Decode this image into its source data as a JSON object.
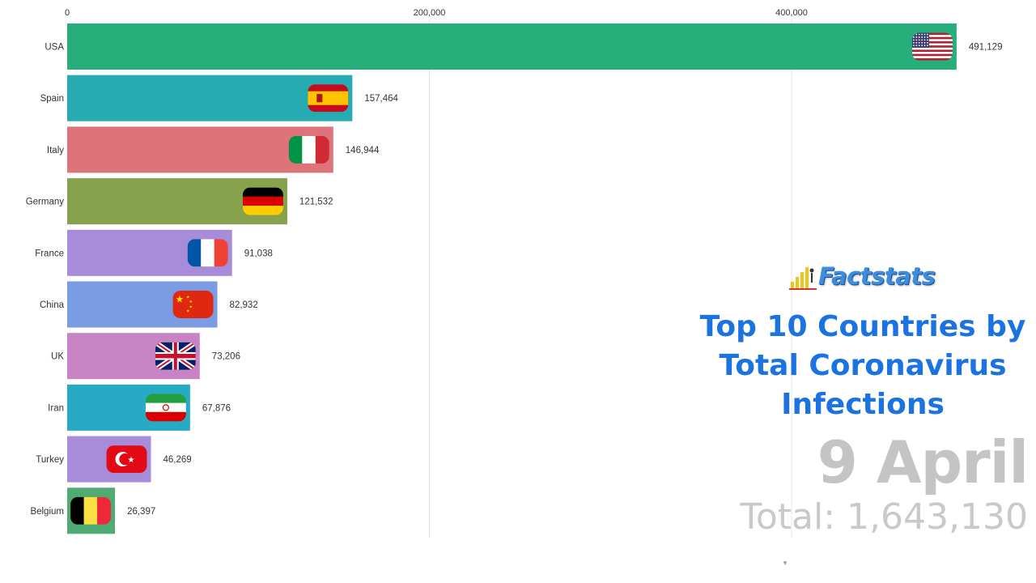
{
  "chart_data": {
    "type": "bar",
    "orientation": "horizontal",
    "categories": [
      "USA",
      "Spain",
      "Italy",
      "Germany",
      "France",
      "China",
      "UK",
      "Iran",
      "Turkey",
      "Belgium"
    ],
    "values": [
      491129,
      157464,
      146944,
      121532,
      91038,
      82932,
      73206,
      67876,
      46269,
      26397
    ],
    "value_labels": [
      "491,129",
      "157,464",
      "146,944",
      "121,532",
      "91,038",
      "82,932",
      "73,206",
      "67,876",
      "46,269",
      "26,397"
    ],
    "colors": [
      "#27ae7a",
      "#27abb2",
      "#dc747a",
      "#86a24c",
      "#a68cd9",
      "#7b9be3",
      "#c783c2",
      "#27abc4",
      "#a68cd9",
      "#4fab72"
    ],
    "flags": [
      "usa-flag",
      "spain-flag",
      "italy-flag",
      "germany-flag",
      "france-flag",
      "china-flag",
      "uk-flag",
      "iran-flag",
      "turkey-flag",
      "belgium-flag"
    ],
    "xlim": [
      0,
      495000
    ],
    "x_ticks": [
      0,
      200000,
      400000
    ],
    "x_tick_labels": [
      "0",
      "200,000",
      "400,000"
    ],
    "axis_position": "top",
    "grid": true,
    "title": "Top 10 Countries by Total Coronavirus Infections",
    "xlabel": "",
    "ylabel": ""
  },
  "brand": {
    "name": "Factstats"
  },
  "title": "Top 10 Countries by Total Coronavirus Infections",
  "date": "9 April",
  "total": "Total: 1,643,130",
  "colors": {
    "title": "#1a73e0",
    "date": "#c4c4c4",
    "brand": "#3c8dde"
  }
}
